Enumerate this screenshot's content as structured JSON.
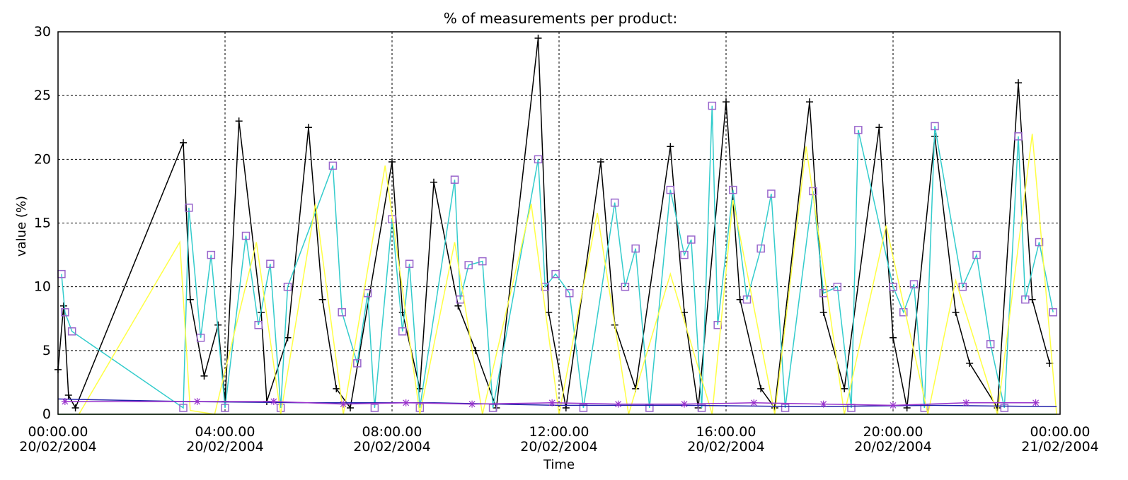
{
  "chart_data": {
    "type": "line",
    "title": "% of measurements per product:",
    "xlabel": "Time",
    "ylabel": "value (%)",
    "ylim": [
      0,
      30
    ],
    "xlim": [
      "20/02/2004 00:00",
      "21/02/2004 00:00"
    ],
    "grid": true,
    "y_ticks": [
      "0",
      "5",
      "10",
      "15",
      "20",
      "25",
      "30"
    ],
    "x_ticks": [
      {
        "time": "00:00.00",
        "date": "20/02/2004"
      },
      {
        "time": "04:00.00",
        "date": "20/02/2004"
      },
      {
        "time": "08:00.00",
        "date": "20/02/2004"
      },
      {
        "time": "12:00.00",
        "date": "20/02/2004"
      },
      {
        "time": "16:00.00",
        "date": "20/02/2004"
      },
      {
        "time": "20:00.00",
        "date": "20/02/2004"
      },
      {
        "time": "00:00.00",
        "date": "21/02/2004"
      }
    ],
    "series": [
      {
        "color": "#000000",
        "marker": "plus",
        "x": [
          "20/02/2004 00:00",
          "20/02/2004 00:08",
          "20/02/2004 00:15",
          "20/02/2004 00:25",
          "20/02/2004 03:00",
          "20/02/2004 03:10",
          "20/02/2004 03:30",
          "20/02/2004 03:50",
          "20/02/2004 04:00",
          "20/02/2004 04:20",
          "20/02/2004 04:52",
          "20/02/2004 05:00",
          "20/02/2004 05:30",
          "20/02/2004 06:00",
          "20/02/2004 06:20",
          "20/02/2004 06:40",
          "20/02/2004 07:00",
          "20/02/2004 08:00",
          "20/02/2004 08:15",
          "20/02/2004 08:40",
          "20/02/2004 09:00",
          "20/02/2004 09:35",
          "20/02/2004 10:00",
          "20/02/2004 10:30",
          "20/02/2004 11:30",
          "20/02/2004 11:45",
          "20/02/2004 12:10",
          "20/02/2004 13:00",
          "20/02/2004 13:20",
          "20/02/2004 13:50",
          "20/02/2004 14:40",
          "20/02/2004 15:00",
          "20/02/2004 15:20",
          "20/02/2004 16:00",
          "20/02/2004 16:20",
          "20/02/2004 16:50",
          "20/02/2004 17:10",
          "20/02/2004 18:00",
          "20/02/2004 18:20",
          "20/02/2004 18:50",
          "20/02/2004 19:40",
          "20/02/2004 20:00",
          "20/02/2004 20:20",
          "20/02/2004 21:00",
          "20/02/2004 21:30",
          "20/02/2004 21:50",
          "20/02/2004 22:30",
          "20/02/2004 23:00",
          "20/02/2004 23:20",
          "20/02/2004 23:45"
        ],
        "y": [
          3.5,
          8.5,
          1.5,
          0.5,
          21.3,
          9.0,
          3.0,
          7.0,
          1.0,
          23.0,
          8.0,
          1.0,
          6.0,
          22.5,
          9.0,
          2.0,
          0.5,
          19.8,
          8.0,
          2.0,
          18.2,
          8.5,
          5.0,
          0.5,
          29.5,
          8.0,
          0.5,
          19.8,
          7.0,
          2.0,
          21.0,
          8.0,
          0.5,
          24.5,
          9.0,
          2.0,
          0.5,
          24.5,
          8.0,
          2.0,
          22.5,
          6.0,
          0.5,
          21.8,
          8.0,
          4.0,
          0.5,
          26.0,
          9.0,
          4.0
        ]
      },
      {
        "color": "#33cccc",
        "marker": "square",
        "x": [
          "20/02/2004 00:05",
          "20/02/2004 00:10",
          "20/02/2004 00:20",
          "20/02/2004 03:00",
          "20/02/2004 03:08",
          "20/02/2004 03:25",
          "20/02/2004 03:40",
          "20/02/2004 04:00",
          "20/02/2004 04:30",
          "20/02/2004 04:48",
          "20/02/2004 05:05",
          "20/02/2004 05:20",
          "20/02/2004 05:30",
          "20/02/2004 06:35",
          "20/02/2004 06:48",
          "20/02/2004 07:10",
          "20/02/2004 07:25",
          "20/02/2004 07:35",
          "20/02/2004 08:00",
          "20/02/2004 08:15",
          "20/02/2004 08:25",
          "20/02/2004 08:40",
          "20/02/2004 09:30",
          "20/02/2004 09:38",
          "20/02/2004 09:50",
          "20/02/2004 10:10",
          "20/02/2004 10:25",
          "20/02/2004 11:30",
          "20/02/2004 11:40",
          "20/02/2004 11:55",
          "20/02/2004 12:15",
          "20/02/2004 12:35",
          "20/02/2004 13:20",
          "20/02/2004 13:35",
          "20/02/2004 13:50",
          "20/02/2004 14:10",
          "20/02/2004 14:40",
          "20/02/2004 15:00",
          "20/02/2004 15:10",
          "20/02/2004 15:25",
          "20/02/2004 15:40",
          "20/02/2004 15:48",
          "20/02/2004 16:10",
          "20/02/2004 16:30",
          "20/02/2004 16:50",
          "20/02/2004 17:05",
          "20/02/2004 17:25",
          "20/02/2004 18:05",
          "20/02/2004 18:20",
          "20/02/2004 18:40",
          "20/02/2004 19:00",
          "20/02/2004 19:10",
          "20/02/2004 20:00",
          "20/02/2004 20:15",
          "20/02/2004 20:30",
          "20/02/2004 20:45",
          "20/02/2004 21:00",
          "20/02/2004 21:40",
          "20/02/2004 22:00",
          "20/02/2004 22:20",
          "20/02/2004 22:40",
          "20/02/2004 23:00",
          "20/02/2004 23:10",
          "20/02/2004 23:30",
          "20/02/2004 23:50"
        ],
        "y": [
          11.0,
          8.0,
          6.5,
          0.5,
          16.2,
          6.0,
          12.5,
          0.5,
          14.0,
          7.0,
          11.8,
          0.5,
          10.0,
          19.5,
          8.0,
          4.0,
          9.5,
          0.5,
          15.3,
          6.5,
          11.8,
          0.5,
          18.4,
          9.0,
          11.7,
          12.0,
          0.5,
          20.0,
          10.0,
          11.0,
          9.5,
          0.5,
          16.6,
          10.0,
          13.0,
          0.5,
          17.6,
          12.5,
          13.7,
          0.5,
          24.2,
          7.0,
          17.6,
          9.0,
          13.0,
          17.3,
          0.5,
          17.5,
          9.5,
          10.0,
          0.5,
          22.3,
          10.0,
          8.0,
          10.2,
          0.5,
          22.6,
          10.0,
          12.5,
          5.5,
          0.5,
          21.8,
          9.0,
          13.5,
          8.0
        ]
      },
      {
        "color": "#ffff44",
        "marker": "none",
        "x": [
          "20/02/2004 00:30",
          "20/02/2004 02:55",
          "20/02/2004 03:10",
          "20/02/2004 03:45",
          "20/02/2004 04:45",
          "20/02/2004 05:20",
          "20/02/2004 06:10",
          "20/02/2004 06:50",
          "20/02/2004 07:50",
          "20/02/2004 08:40",
          "20/02/2004 09:30",
          "20/02/2004 10:10",
          "20/02/2004 11:20",
          "20/02/2004 12:00",
          "20/02/2004 12:55",
          "20/02/2004 13:40",
          "20/02/2004 14:40",
          "20/02/2004 15:40",
          "20/02/2004 16:10",
          "20/02/2004 17:10",
          "20/02/2004 17:55",
          "20/02/2004 18:50",
          "20/02/2004 19:50",
          "20/02/2004 20:50",
          "20/02/2004 21:30",
          "20/02/2004 22:30",
          "20/02/2004 23:20",
          "20/02/2004 23:55"
        ],
        "y": [
          0.0,
          13.5,
          0.3,
          0.0,
          13.5,
          0.0,
          16.5,
          0.0,
          19.5,
          0.0,
          13.5,
          0.0,
          16.5,
          0.0,
          15.8,
          0.0,
          11.0,
          0.0,
          16.8,
          0.0,
          21.0,
          0.0,
          14.8,
          0.0,
          10.5,
          0.0,
          22.0,
          0.0
        ]
      },
      {
        "color": "#2222aa",
        "marker": "none",
        "x": [
          "20/02/2004 00:00",
          "20/02/2004 03:00",
          "20/02/2004 06:00",
          "20/02/2004 09:00",
          "20/02/2004 12:00",
          "20/02/2004 15:00",
          "20/02/2004 18:00",
          "20/02/2004 21:00",
          "20/02/2004 23:55"
        ],
        "y": [
          1.2,
          1.0,
          0.9,
          0.9,
          0.7,
          0.7,
          0.6,
          0.7,
          0.6
        ]
      },
      {
        "color": "#9933cc",
        "marker": "star",
        "x": [
          "20/02/2004 00:10",
          "20/02/2004 03:20",
          "20/02/2004 05:10",
          "20/02/2004 06:50",
          "20/02/2004 08:20",
          "20/02/2004 09:55",
          "20/02/2004 11:50",
          "20/02/2004 13:25",
          "20/02/2004 15:00",
          "20/02/2004 16:40",
          "20/02/2004 18:20",
          "20/02/2004 20:00",
          "20/02/2004 21:45",
          "20/02/2004 23:25"
        ],
        "y": [
          1.0,
          1.0,
          1.0,
          0.8,
          0.9,
          0.8,
          0.9,
          0.8,
          0.8,
          0.9,
          0.8,
          0.7,
          0.9,
          0.9
        ]
      },
      {
        "color": "#44cc44",
        "marker": "none",
        "x": [
          "20/02/2004 00:00",
          "20/02/2004 23:55"
        ],
        "y": [
          0.0,
          0.0
        ]
      }
    ]
  }
}
